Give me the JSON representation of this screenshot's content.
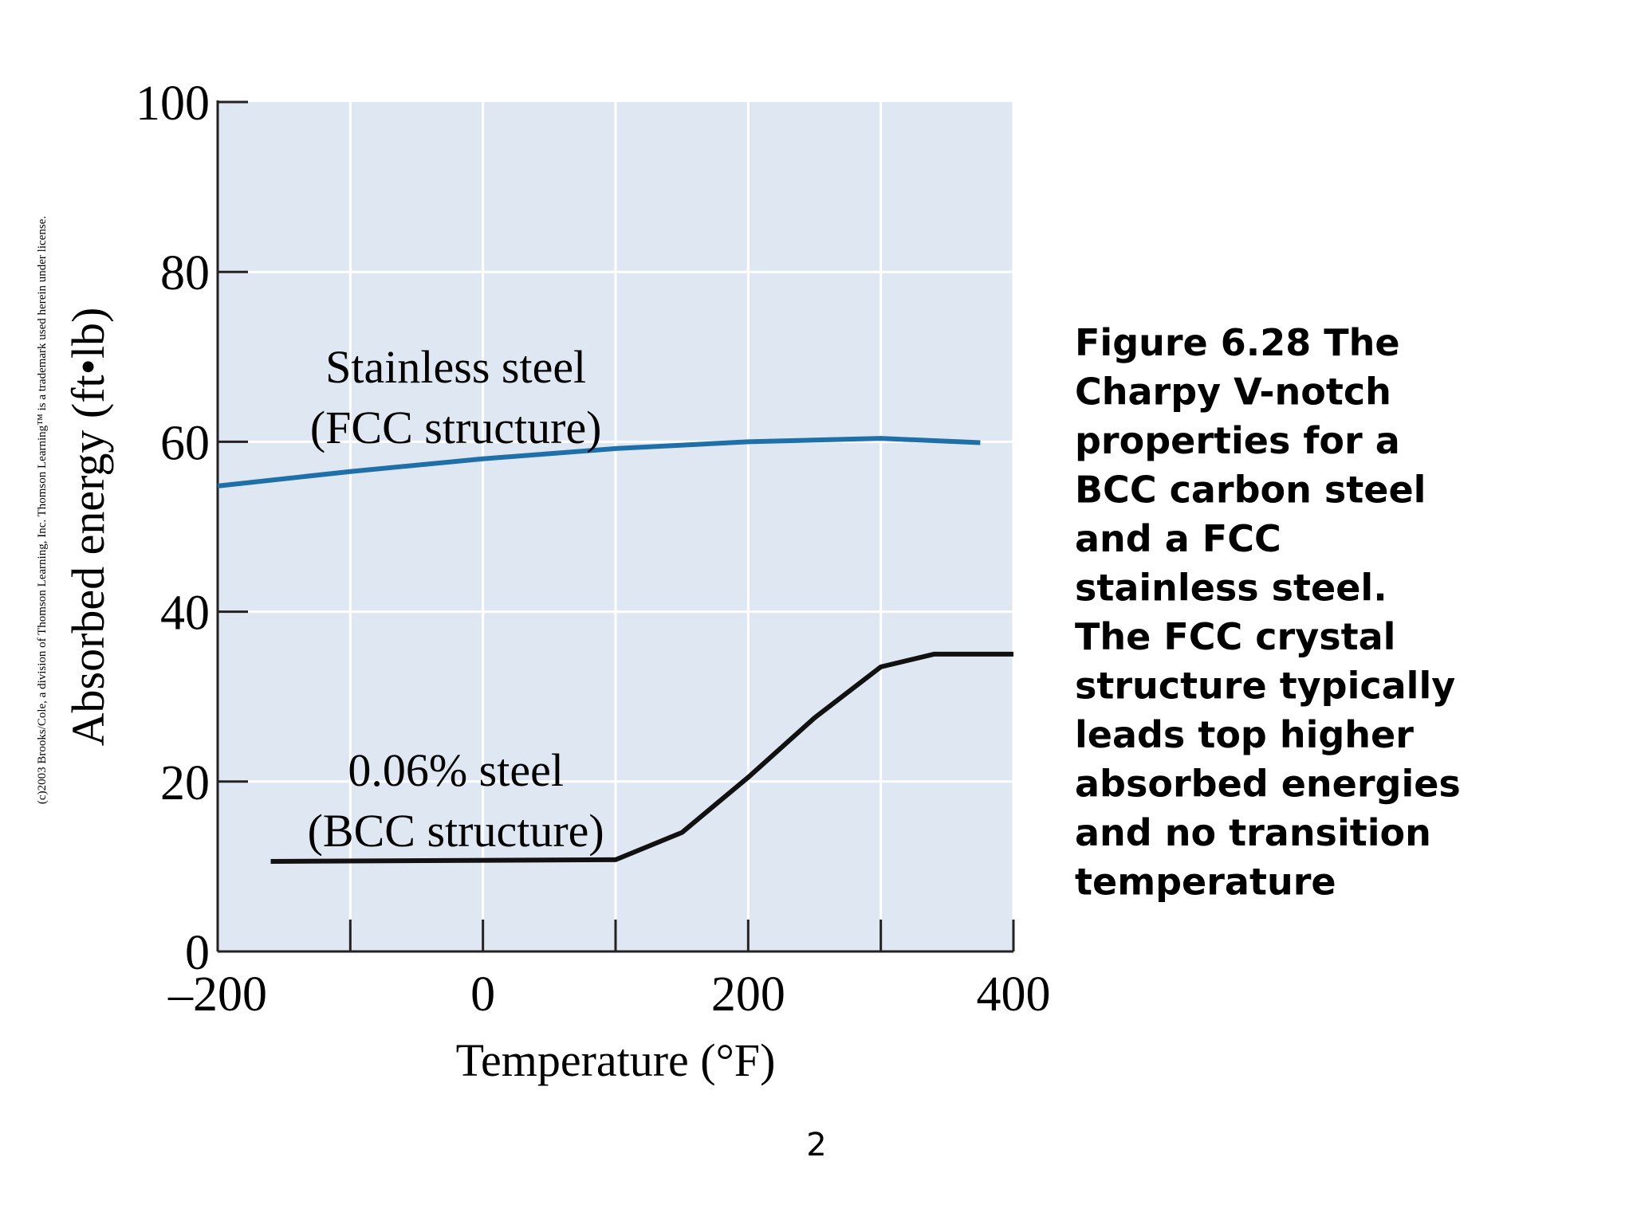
{
  "chart_data": {
    "type": "line",
    "xlabel": "Temperature (°F)",
    "ylabel": "Absorbed energy (ft•lb)",
    "xlim": [
      -200,
      400
    ],
    "ylim": [
      0,
      100
    ],
    "xticks": [
      {
        "value": -200,
        "label": "–200"
      },
      0,
      200,
      400
    ],
    "xminor_ticks": [
      -100,
      100,
      300
    ],
    "yticks": [
      0,
      20,
      40,
      60,
      80,
      100
    ],
    "grid": true,
    "series": [
      {
        "name": "Stainless steel (FCC structure)",
        "color": "#1f6fa8",
        "x": [
          -200,
          -100,
          0,
          100,
          200,
          300,
          375
        ],
        "values": [
          54.8,
          56.5,
          58,
          59.2,
          60,
          60.4,
          59.9
        ]
      },
      {
        "name": "0.06% steel (BCC structure)",
        "color": "#111111",
        "x": [
          -160,
          100,
          150,
          200,
          250,
          300,
          340,
          400
        ],
        "values": [
          10.6,
          10.8,
          14,
          20.5,
          27.5,
          33.5,
          35,
          35
        ]
      }
    ],
    "annotations": [
      {
        "lines": [
          "Stainless steel",
          "(FCC structure)"
        ],
        "x": 0,
        "y": 67
      },
      {
        "lines": [
          "0.06% steel",
          "(BCC structure)"
        ],
        "x": 0,
        "y": 19.5
      }
    ]
  },
  "caption": [
    "Figure 6.28  The",
    "Charpy V-notch",
    "properties for a",
    "BCC carbon steel",
    "and a FCC",
    "stainless steel.",
    "The FCC crystal",
    "structure typically",
    "leads top higher",
    "absorbed energies",
    "and no transition",
    "temperature"
  ],
  "copyright": "(c)2003 Brooks/Cole, a division of Thomson Learning, Inc.  Thomson Learning™ is a trademark used herein under license.",
  "page_number": "2"
}
